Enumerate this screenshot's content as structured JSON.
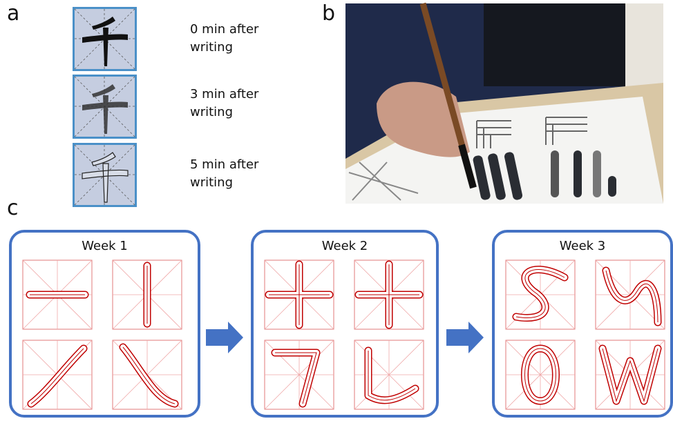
{
  "panels": {
    "a": {
      "label": "a",
      "captions": [
        "0 min after writing",
        "3 min after writing",
        "5 min after writing"
      ]
    },
    "b": {
      "label": "b"
    },
    "c": {
      "label": "c",
      "weeks": [
        "Week 1",
        "Week 2",
        "Week 3"
      ]
    }
  }
}
